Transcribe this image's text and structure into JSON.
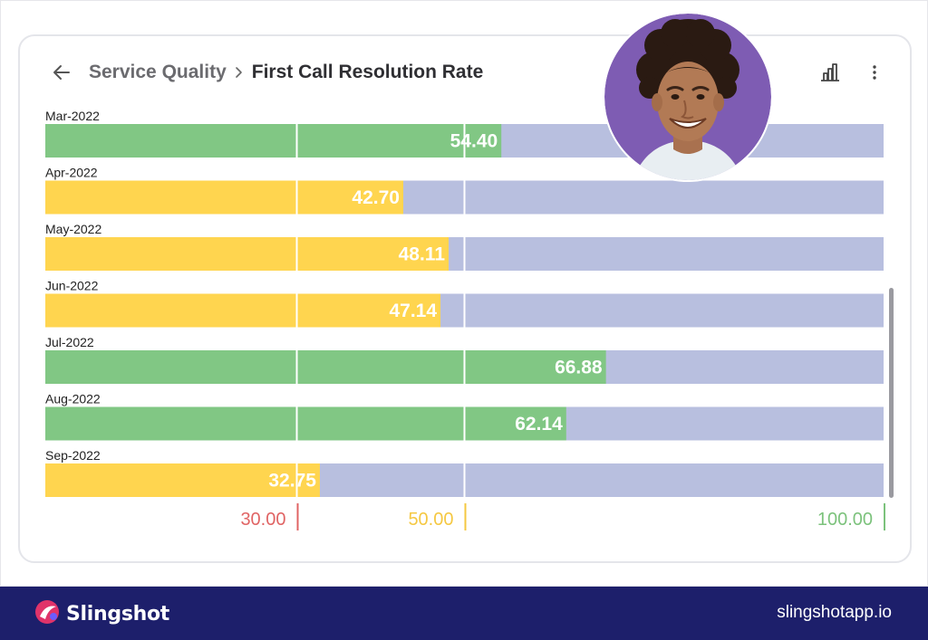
{
  "header": {
    "breadcrumb_parent": "Service Quality",
    "breadcrumb_current": "First Call Resolution Rate"
  },
  "icons": {
    "back": "arrow-left-icon",
    "separator": "chevron-right-icon",
    "chart_type": "bar-chart-icon",
    "more": "more-vertical-icon"
  },
  "chart_data": {
    "type": "bar",
    "orientation": "horizontal",
    "title": "First Call Resolution Rate",
    "categories": [
      "Mar-2022",
      "Apr-2022",
      "May-2022",
      "Jun-2022",
      "Jul-2022",
      "Aug-2022",
      "Sep-2022"
    ],
    "values": [
      54.4,
      42.7,
      48.11,
      47.14,
      66.88,
      62.14,
      32.75
    ],
    "value_labels": [
      "54.40",
      "42.70",
      "48.11",
      "47.14",
      "66.88",
      "62.14",
      "32.75"
    ],
    "xlim": [
      0,
      100
    ],
    "thresholds": [
      {
        "value": 30,
        "label": "30.00",
        "color": "#e06464"
      },
      {
        "value": 50,
        "label": "50.00",
        "color": "#f5c842"
      },
      {
        "value": 100,
        "label": "100.00",
        "color": "#7cc27c"
      }
    ],
    "colors": {
      "good": "#81c784",
      "warning": "#ffd54f",
      "track": "#b8bfdf"
    }
  },
  "footer": {
    "brand": "Slingshot",
    "website": "slingshotapp.io"
  }
}
